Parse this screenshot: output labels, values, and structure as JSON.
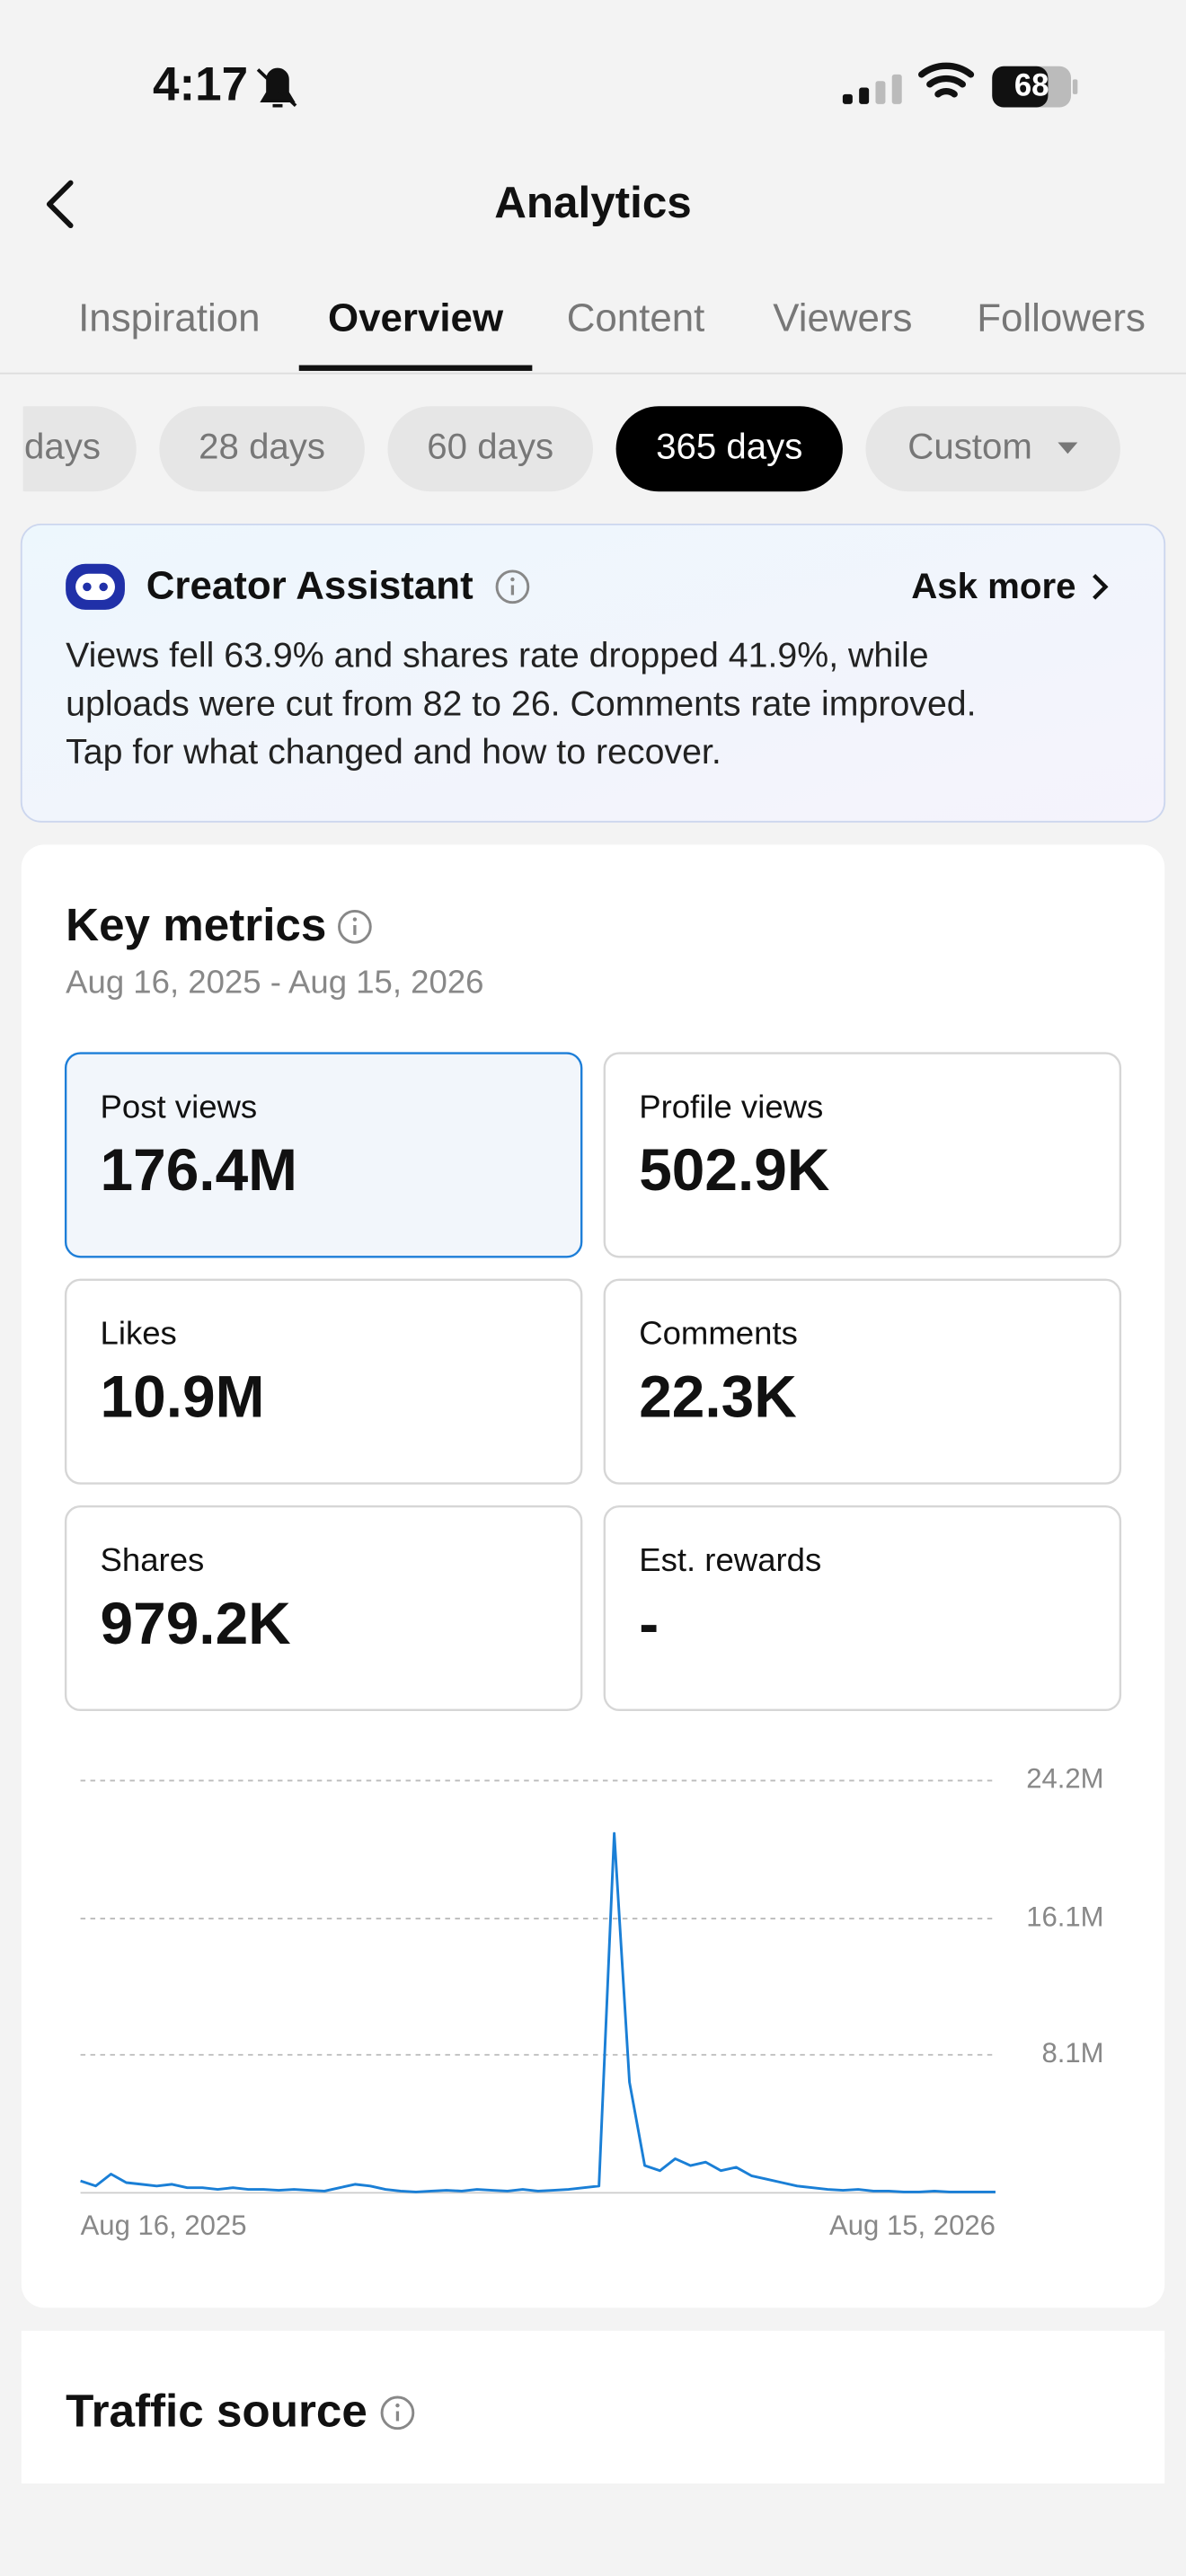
{
  "status_bar": {
    "time": "4:17",
    "battery": "68"
  },
  "header": {
    "title": "Analytics"
  },
  "tabs": {
    "items": [
      "Inspiration",
      "Overview",
      "Content",
      "Viewers",
      "Followers"
    ],
    "active": 1
  },
  "range_chips": {
    "items": [
      "days",
      "28 days",
      "60 days",
      "365 days",
      "Custom"
    ],
    "selected": 3
  },
  "assistant": {
    "title": "Creator Assistant",
    "action": "Ask more",
    "lines": [
      "Views fell 63.9% and shares rate dropped 41.9%, while",
      "uploads were cut from 82 to 26. Comments rate improved.",
      "Tap for what changed and how to recover."
    ]
  },
  "key_metrics": {
    "title": "Key metrics",
    "date_range": "Aug 16, 2025 - Aug 15, 2026",
    "metrics": [
      {
        "label": "Post views",
        "value": "176.4M"
      },
      {
        "label": "Profile views",
        "value": "502.9K"
      },
      {
        "label": "Likes",
        "value": "10.9M"
      },
      {
        "label": "Comments",
        "value": "22.3K"
      },
      {
        "label": "Shares",
        "value": "979.2K"
      },
      {
        "label": "Est. rewards",
        "value": "-"
      }
    ],
    "selected": 0
  },
  "chart_data": {
    "type": "line",
    "color": "#1a7fd6",
    "grid": true,
    "categories": [
      "Aug 16, 2025",
      null,
      null,
      null,
      null,
      null,
      null,
      null,
      null,
      null,
      null,
      null,
      null,
      null,
      null,
      null,
      null,
      null,
      null,
      null,
      null,
      null,
      null,
      null,
      null,
      null,
      null,
      null,
      null,
      null,
      null,
      null,
      null,
      null,
      null,
      null,
      null,
      null,
      null,
      null,
      null,
      null,
      null,
      null,
      null,
      null,
      null,
      null,
      null,
      null,
      null,
      null,
      null,
      null,
      null,
      null,
      null,
      null,
      null,
      null,
      "Aug 15, 2026"
    ],
    "values": [
      700000,
      400000,
      1100000,
      600000,
      500000,
      400000,
      500000,
      300000,
      300000,
      200000,
      300000,
      200000,
      200000,
      150000,
      200000,
      150000,
      100000,
      300000,
      500000,
      400000,
      200000,
      100000,
      50000,
      100000,
      150000,
      100000,
      200000,
      150000,
      100000,
      200000,
      100000,
      150000,
      200000,
      300000,
      400000,
      21100000,
      6500000,
      1600000,
      1300000,
      2000000,
      1600000,
      1800000,
      1300000,
      1500000,
      1000000,
      800000,
      600000,
      400000,
      300000,
      200000,
      150000,
      200000,
      100000,
      100000,
      50000,
      50000,
      100000,
      50000,
      50000,
      50000,
      50000
    ],
    "ylim": [
      0,
      24200000
    ],
    "yticks": [
      {
        "value": 8100000,
        "label": "8.1M"
      },
      {
        "value": 16100000,
        "label": "16.1M"
      },
      {
        "value": 24200000,
        "label": "24.2M"
      }
    ]
  },
  "traffic_source": {
    "title": "Traffic source"
  }
}
